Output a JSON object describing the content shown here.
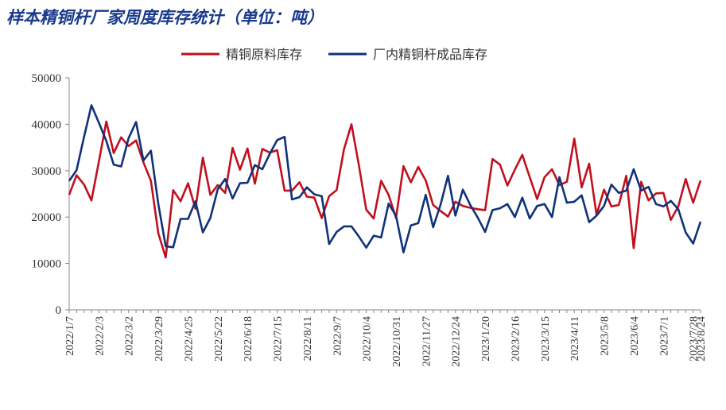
{
  "title": "样本精铜杆厂家周度库存统计（单位：吨）",
  "chart_data": {
    "type": "line",
    "title": "样本精铜杆厂家周度库存统计（单位：吨）",
    "xlabel": "",
    "ylabel": "",
    "ylim": [
      0,
      50000
    ],
    "y_ticks": [
      "0",
      "10000",
      "20000",
      "30000",
      "40000",
      "50000"
    ],
    "x_tick_labels": [
      "2022/1/7",
      "2022/2/3",
      "2022/3/2",
      "2022/3/29",
      "2022/4/25",
      "2022/5/22",
      "2022/6/18",
      "2022/7/15",
      "2022/8/11",
      "2022/9/7",
      "2022/10/4",
      "2022/10/31",
      "2022/11/27",
      "2022/12/24",
      "2023/1/20",
      "2023/2/16",
      "2023/3/15",
      "2023/4/11",
      "2023/5/8",
      "2023/6/4",
      "2023/7/1",
      "2023/7/28",
      "2023/8/24"
    ],
    "legend_position": "top-center",
    "grid": false,
    "series": [
      {
        "name": "精铜原料库存",
        "color": "#c0101e",
        "values": [
          24800,
          29000,
          27000,
          23600,
          32000,
          40600,
          33800,
          37200,
          35300,
          36500,
          31800,
          27800,
          16500,
          11300,
          25800,
          23400,
          27300,
          21800,
          32800,
          24800,
          26900,
          25200,
          34900,
          30200,
          34800,
          27200,
          34700,
          33900,
          34400,
          25700,
          25700,
          27500,
          24400,
          24200,
          19800,
          24500,
          25800,
          34600,
          40000,
          31200,
          21600,
          19700,
          27800,
          24800,
          19800,
          31000,
          27500,
          30800,
          27900,
          22600,
          21300,
          20100,
          23300,
          22400,
          22000,
          21700,
          21500,
          32500,
          31300,
          26800,
          30200,
          33400,
          28600,
          23900,
          28600,
          30300,
          26900,
          27600,
          36900,
          26400,
          31500,
          20500,
          25900,
          22300,
          22600,
          28900,
          13300,
          27600,
          23600,
          25100,
          25200,
          19400,
          22300,
          28200,
          23100,
          27900
        ]
      },
      {
        "name": "厂内精铜杆成品库存",
        "color": "#0f3278",
        "values": [
          27800,
          30100,
          37300,
          44100,
          40300,
          36400,
          31300,
          30900,
          37000,
          40500,
          32200,
          34300,
          22800,
          13700,
          13500,
          19600,
          19600,
          23400,
          16700,
          19800,
          26000,
          28200,
          24000,
          27300,
          27400,
          31200,
          30300,
          33600,
          36600,
          37300,
          23800,
          24300,
          26400,
          24900,
          24500,
          14200,
          16800,
          18000,
          18000,
          15800,
          13400,
          16000,
          15600,
          22900,
          20300,
          12400,
          18200,
          18700,
          24800,
          17800,
          22700,
          28900,
          20300,
          25900,
          22600,
          19900,
          16800,
          21500,
          21900,
          22800,
          20000,
          24200,
          19700,
          22400,
          22800,
          20000,
          28600,
          23100,
          23300,
          24700,
          18900,
          20300,
          22400,
          27000,
          25200,
          25700,
          30300,
          25700,
          26500,
          22800,
          22300,
          23500,
          21700,
          16700,
          14300,
          19000
        ]
      }
    ]
  }
}
